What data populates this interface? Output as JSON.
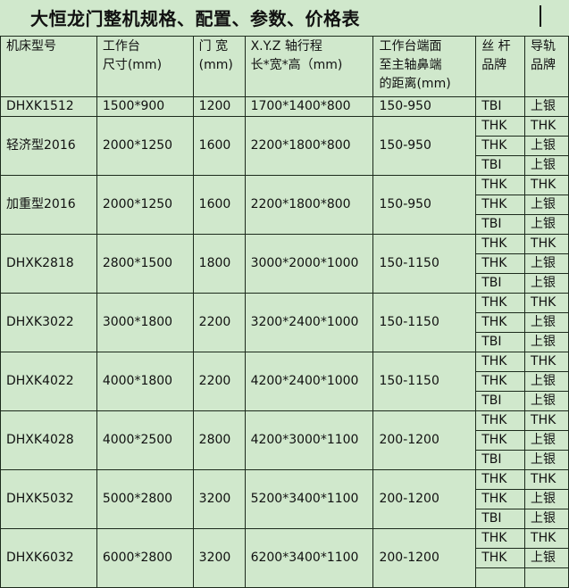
{
  "title": "大恒龙门整机规格、配置、参数、价格表",
  "headers": [
    {
      "l1": "机床型号",
      "l2": "",
      "l3": ""
    },
    {
      "l1": "工作台",
      "l2": "尺寸(mm)",
      "l3": ""
    },
    {
      "l1": "门 宽",
      "l2": "(mm)",
      "l3": ""
    },
    {
      "l1": "X.Y.Z 轴行程",
      "l2": "长*宽*高（mm)",
      "l3": ""
    },
    {
      "l1": "工作台端面",
      "l2": "至主轴鼻端",
      "l3": "的距离(mm)"
    },
    {
      "l1": "丝 杆",
      "l2": "品牌",
      "l3": ""
    },
    {
      "l1": "导轨",
      "l2": "品牌",
      "l3": ""
    }
  ],
  "rows": [
    {
      "model": "DHXK1512",
      "table": "1500*900",
      "width": "1200",
      "travel": "1700*1400*800",
      "distance": "150-950",
      "brands": [
        [
          "TBI",
          "上银"
        ]
      ]
    },
    {
      "model": "轻济型2016",
      "table": "2000*1250",
      "width": "1600",
      "travel": "2200*1800*800",
      "distance": "150-950",
      "brands": [
        [
          "THK",
          "THK"
        ],
        [
          "THK",
          "上银"
        ],
        [
          "TBI",
          "上银"
        ]
      ]
    },
    {
      "model": "加重型2016",
      "table": "2000*1250",
      "width": "1600",
      "travel": "2200*1800*800",
      "distance": "150-950",
      "brands": [
        [
          "THK",
          "THK"
        ],
        [
          "THK",
          "上银"
        ],
        [
          "TBI",
          "上银"
        ]
      ]
    },
    {
      "model": "DHXK2818",
      "table": "2800*1500",
      "width": "1800",
      "travel": "3000*2000*1000",
      "distance": "150-1150",
      "brands": [
        [
          "THK",
          "THK"
        ],
        [
          "THK",
          "上银"
        ],
        [
          "TBI",
          "上银"
        ]
      ]
    },
    {
      "model": "DHXK3022",
      "table": "3000*1800",
      "width": "2200",
      "travel": "3200*2400*1000",
      "distance": "150-1150",
      "brands": [
        [
          "THK",
          "THK"
        ],
        [
          "THK",
          "上银"
        ],
        [
          "TBI",
          "上银"
        ]
      ]
    },
    {
      "model": "DHXK4022",
      "table": "4000*1800",
      "width": "2200",
      "travel": "4200*2400*1000",
      "distance": "150-1150",
      "brands": [
        [
          "THK",
          "THK"
        ],
        [
          "THK",
          "上银"
        ],
        [
          "TBI",
          "上银"
        ]
      ]
    },
    {
      "model": "DHXK4028",
      "table": "4000*2500",
      "width": "2800",
      "travel": "4200*3000*1100",
      "distance": "200-1200",
      "brands": [
        [
          "THK",
          "THK"
        ],
        [
          "THK",
          "上银"
        ],
        [
          "TBI",
          "上银"
        ]
      ]
    },
    {
      "model": "DHXK5032",
      "table": "5000*2800",
      "width": "3200",
      "travel": "5200*3400*1100",
      "distance": "200-1200",
      "brands": [
        [
          "THK",
          "THK"
        ],
        [
          "THK",
          "上银"
        ],
        [
          "TBI",
          "上银"
        ]
      ]
    },
    {
      "model": "DHXK6032",
      "table": "6000*2800",
      "width": "3200",
      "travel": "6200*3400*1100",
      "distance": "200-1200",
      "brands": [
        [
          "THK",
          "THK"
        ],
        [
          "THK",
          "上银"
        ]
      ]
    }
  ]
}
